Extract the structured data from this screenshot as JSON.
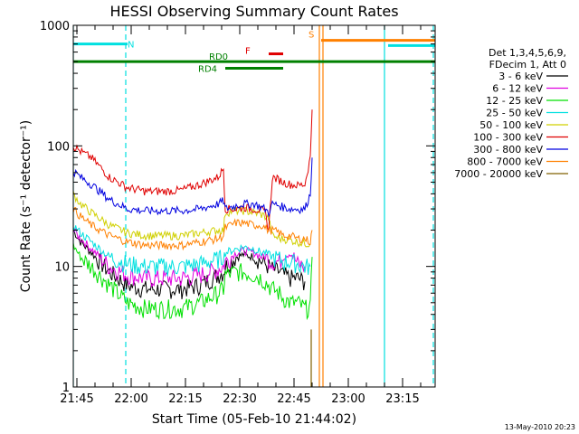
{
  "chart_data": {
    "type": "line",
    "title": "HESSI Observing Summary Count Rates",
    "xlabel": "Start Time (05-Feb-10 21:44:02)",
    "ylabel": "Count Rate (s⁻¹ detector⁻¹)",
    "x_unit": "minutes after 21:44:02",
    "xlim": [
      0,
      100
    ],
    "ylim": [
      1,
      1000
    ],
    "yscale": "log",
    "x_ticks": [
      {
        "label": "21:45",
        "value": 1
      },
      {
        "label": "22:00",
        "value": 16
      },
      {
        "label": "22:15",
        "value": 31
      },
      {
        "label": "22:30",
        "value": 46
      },
      {
        "label": "22:45",
        "value": 61
      },
      {
        "label": "23:00",
        "value": 76
      },
      {
        "label": "23:15",
        "value": 91
      }
    ],
    "y_ticks": [
      {
        "label": "1",
        "value": 1
      },
      {
        "label": "10",
        "value": 10
      },
      {
        "label": "100",
        "value": 100
      },
      {
        "label": "1000",
        "value": 1000
      }
    ],
    "legend": {
      "placement": "right",
      "header": [
        "Det 1,3,4,5,6,9,",
        "FDecim 1, Att 0"
      ]
    },
    "x": [
      0,
      2,
      5,
      10,
      15,
      20,
      25,
      30,
      35,
      40,
      41.5,
      42,
      45,
      47,
      50,
      52,
      53,
      54,
      55,
      57,
      58,
      60,
      62,
      64,
      65.5,
      66,
      67,
      68
    ],
    "series": [
      {
        "name": "3 - 6 keV",
        "color": "#000000",
        "values": [
          20,
          16,
          13,
          9,
          7,
          6.5,
          6.5,
          6.5,
          7,
          8.5,
          9,
          10,
          12,
          12.5,
          12,
          11,
          10.5,
          10,
          9.5,
          9,
          8.5,
          8,
          8,
          7.5,
          null,
          null,
          null,
          null
        ]
      },
      {
        "name": "6 - 12 keV",
        "color": "#e000e0",
        "values": [
          20,
          17,
          14,
          10,
          8.5,
          8,
          8,
          8,
          8.5,
          9.5,
          10,
          11,
          13,
          13.5,
          13,
          12,
          12,
          11.5,
          11,
          11,
          12,
          13,
          10.5,
          10,
          null,
          null,
          null,
          null
        ]
      },
      {
        "name": "12 - 25 keV",
        "color": "#00e000",
        "values": [
          15,
          12,
          10,
          7,
          5,
          4.5,
          4.5,
          4.5,
          5,
          6,
          6.5,
          8.5,
          9,
          9,
          8.5,
          8,
          7.5,
          7,
          6.5,
          6,
          5.5,
          5,
          5,
          4.5,
          4.5,
          12,
          null,
          null
        ]
      },
      {
        "name": "25 - 50 keV",
        "color": "#00e0e0",
        "values": [
          22,
          19,
          16,
          12,
          10.5,
          10,
          10,
          10,
          10.5,
          11.5,
          12,
          13,
          14,
          14.5,
          14,
          13,
          13,
          12.5,
          12,
          11.5,
          11,
          11,
          10.5,
          10,
          10,
          null,
          null,
          null
        ]
      },
      {
        "name": "50 - 100 keV",
        "color": "#d0d000",
        "values": [
          40,
          33,
          28,
          22,
          19,
          18,
          18,
          18,
          19,
          20,
          20,
          28,
          29,
          29,
          28,
          27,
          26,
          25,
          18,
          17,
          17,
          16.5,
          16,
          15.5,
          15.5,
          null,
          null,
          null
        ]
      },
      {
        "name": "100 - 300 keV",
        "color": "#e00000",
        "values": [
          100,
          90,
          80,
          55,
          45,
          42,
          42,
          43,
          48,
          55,
          65,
          30,
          30,
          31,
          30,
          29,
          28,
          20,
          55,
          52,
          50,
          48,
          47,
          48,
          80,
          200,
          null,
          null
        ]
      },
      {
        "name": "300 - 800 keV",
        "color": "#0000e0",
        "values": [
          62,
          55,
          48,
          36,
          30,
          29,
          29,
          29,
          30,
          33,
          35,
          30,
          32,
          33,
          33,
          31,
          30,
          28,
          33,
          32,
          31,
          30,
          30,
          30,
          40,
          80,
          null,
          null
        ]
      },
      {
        "name": "800 - 7000 keV",
        "color": "#ff8000",
        "values": [
          30,
          26,
          22,
          18,
          16,
          15,
          15,
          15,
          16,
          17,
          18,
          21,
          23,
          23,
          22,
          22,
          21,
          20,
          20,
          19,
          18,
          18,
          17,
          17,
          16,
          20,
          null,
          null
        ]
      },
      {
        "name": "7000 - 20000 keV",
        "color": "#806000",
        "values": [
          null,
          null,
          null,
          null,
          null,
          null,
          null,
          null,
          null,
          null,
          null,
          null,
          null,
          null,
          null,
          null,
          null,
          null,
          null,
          null,
          null,
          null,
          null,
          null,
          null,
          3,
          null,
          null
        ]
      }
    ],
    "state_bars": [
      {
        "label": "N",
        "color": "#00e0e0",
        "y": 700,
        "segments": [
          [
            0,
            15
          ]
        ]
      },
      {
        "label": "N",
        "color": "#00e0e0",
        "y": 680,
        "segments": [
          [
            87,
            100
          ]
        ]
      },
      {
        "label": "S",
        "color": "#ff8000",
        "y": 750,
        "segments": [
          [
            68.5,
            100
          ]
        ]
      },
      {
        "label": "RD0",
        "color": "#008000",
        "y": 500,
        "segments": [
          [
            0,
            100
          ]
        ]
      },
      {
        "label": "RD4",
        "color": "#008000",
        "y": 440,
        "segments": [
          [
            42,
            58
          ]
        ]
      },
      {
        "label": "F",
        "color": "#e00000",
        "y": 580,
        "segments": [
          [
            54,
            58
          ]
        ]
      }
    ],
    "vertical_lines": [
      {
        "x": 0,
        "color": "#00e0e0",
        "style": "solid"
      },
      {
        "x": 14.5,
        "color": "#00e0e0",
        "style": "dashed"
      },
      {
        "x": 68,
        "color": "#ff8000",
        "style": "solid"
      },
      {
        "x": 69,
        "color": "#ff8000",
        "style": "solid"
      },
      {
        "x": 86,
        "color": "#00e0e0",
        "style": "solid"
      },
      {
        "x": 99.5,
        "color": "#00e0e0",
        "style": "dashed"
      }
    ],
    "footer": "13-May-2010 20:23"
  }
}
